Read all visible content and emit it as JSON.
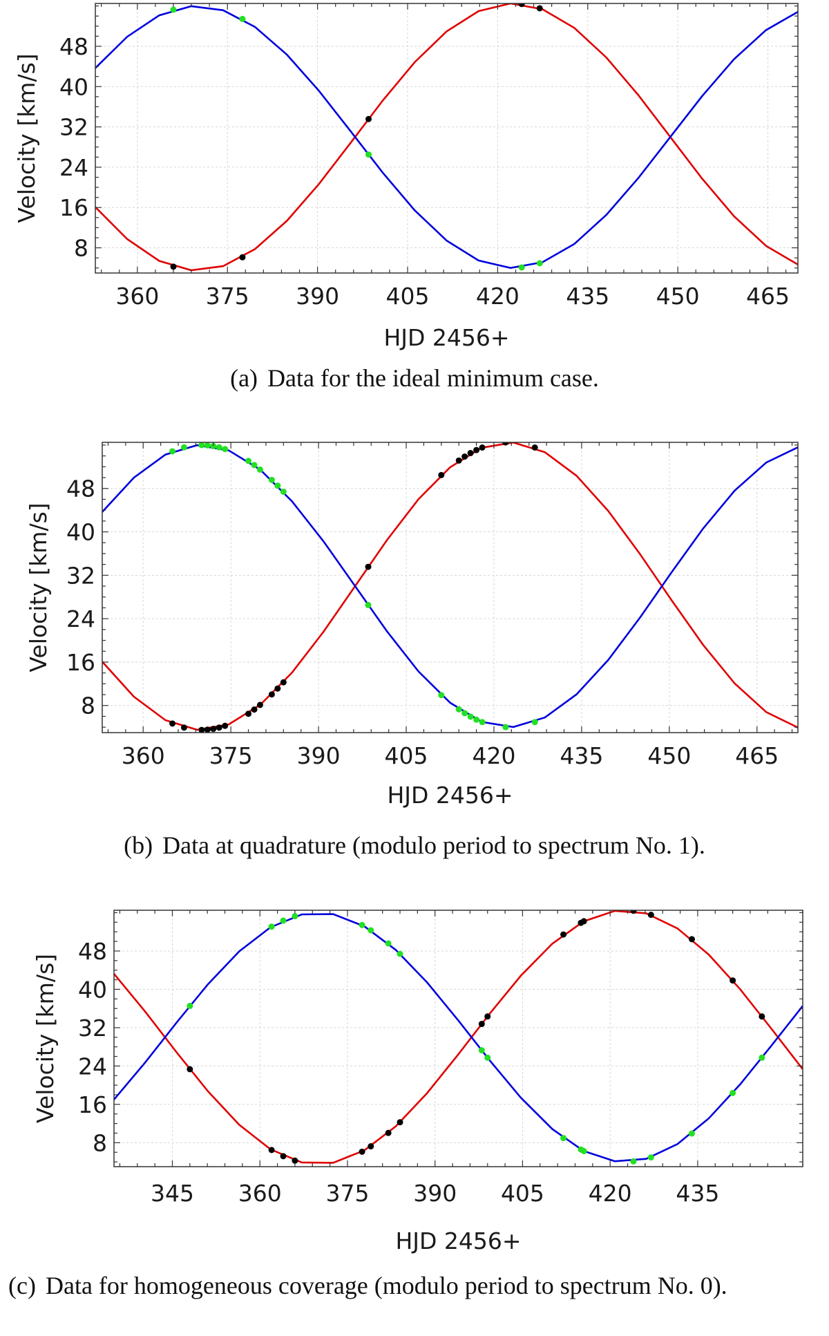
{
  "colors": {
    "primary_curve": "#e00000",
    "secondary_curve": "#0000dd",
    "primary_points": "#000000",
    "secondary_points": "#22e022",
    "grid": "#d6d6d6",
    "frame": "#333333"
  },
  "chart_data": [
    {
      "id": "a",
      "type": "line",
      "caption_label": "(a)",
      "caption_text": "Data for the ideal minimum case.",
      "xlabel": "HJD 2456+",
      "ylabel": "Velocity [km/s]",
      "xlim": [
        353,
        470
      ],
      "ylim": [
        3,
        56.5
      ],
      "xticks": [
        360,
        375,
        390,
        405,
        420,
        435,
        450,
        465
      ],
      "yticks": [
        8,
        16,
        24,
        32,
        40,
        48
      ],
      "grid": true,
      "series": [
        {
          "name": "primary",
          "color": "#e00000",
          "center": 30,
          "amplitude": 26.5,
          "period": 105,
          "phase_zero": 396.25,
          "sign": 1
        },
        {
          "name": "secondary",
          "color": "#0000dd",
          "center": 30,
          "amplitude": 26,
          "period": 105,
          "phase_zero": 396.25,
          "sign": -1
        }
      ],
      "points": [
        {
          "series": "primary",
          "x": [
            366,
            377.5,
            398.5,
            424,
            427
          ]
        },
        {
          "series": "secondary",
          "x": [
            366,
            377.5,
            398.5,
            424,
            427
          ]
        }
      ]
    },
    {
      "id": "b",
      "type": "line",
      "caption_label": "(b)",
      "caption_text": "Data at quadrature (modulo period to spectrum No. 1).",
      "xlabel": "HJD 2456+",
      "ylabel": "Velocity [km/s]",
      "xlim": [
        353,
        472
      ],
      "ylim": [
        3,
        56.5
      ],
      "xticks": [
        360,
        375,
        390,
        405,
        420,
        435,
        450,
        465
      ],
      "yticks": [
        8,
        16,
        24,
        32,
        40,
        48
      ],
      "grid": true,
      "series": [
        {
          "name": "primary",
          "color": "#e00000",
          "center": 30,
          "amplitude": 26.5,
          "period": 105,
          "phase_zero": 396.25,
          "sign": 1
        },
        {
          "name": "secondary",
          "color": "#0000dd",
          "center": 30,
          "amplitude": 26,
          "period": 105,
          "phase_zero": 396.25,
          "sign": -1
        }
      ],
      "points": [
        {
          "series": "primary",
          "x": [
            365,
            367,
            370,
            371,
            372,
            373,
            374,
            378,
            379,
            380,
            382,
            383,
            384,
            398.5,
            411,
            414,
            415,
            416,
            417,
            418,
            422,
            427
          ]
        },
        {
          "series": "secondary",
          "x": [
            365,
            367,
            370,
            371,
            372,
            373,
            374,
            378,
            379,
            380,
            382,
            383,
            384,
            398.5,
            411,
            414,
            415,
            416,
            417,
            418,
            422,
            427
          ]
        }
      ]
    },
    {
      "id": "c",
      "type": "line",
      "caption_label": "(c)",
      "caption_text": "Data for homogeneous coverage (modulo period to spectrum No. 0).",
      "xlabel": "HJD 2456+",
      "ylabel": "Velocity [km/s]",
      "xlim": [
        335,
        453
      ],
      "ylim": [
        3,
        56.5
      ],
      "xticks": [
        345,
        360,
        375,
        390,
        405,
        420,
        435
      ],
      "yticks": [
        8,
        16,
        24,
        32,
        40,
        48
      ],
      "grid": true,
      "series": [
        {
          "name": "primary",
          "color": "#e00000",
          "center": 30,
          "amplitude": 26.5,
          "period": 105,
          "phase_zero": 396.25,
          "sign": 1
        },
        {
          "name": "secondary",
          "color": "#0000dd",
          "center": 30,
          "amplitude": 26,
          "period": 105,
          "phase_zero": 396.25,
          "sign": -1
        }
      ],
      "points": [
        {
          "series": "primary",
          "x": [
            348,
            362,
            364,
            366,
            377.5,
            379,
            382,
            384,
            398,
            399,
            412,
            415,
            415.5,
            424,
            427,
            434,
            441,
            446
          ]
        },
        {
          "series": "secondary",
          "x": [
            348,
            362,
            364,
            366,
            377.5,
            379,
            382,
            384,
            398,
            399,
            412,
            415,
            415.5,
            424,
            427,
            434,
            441,
            446
          ]
        }
      ]
    }
  ]
}
